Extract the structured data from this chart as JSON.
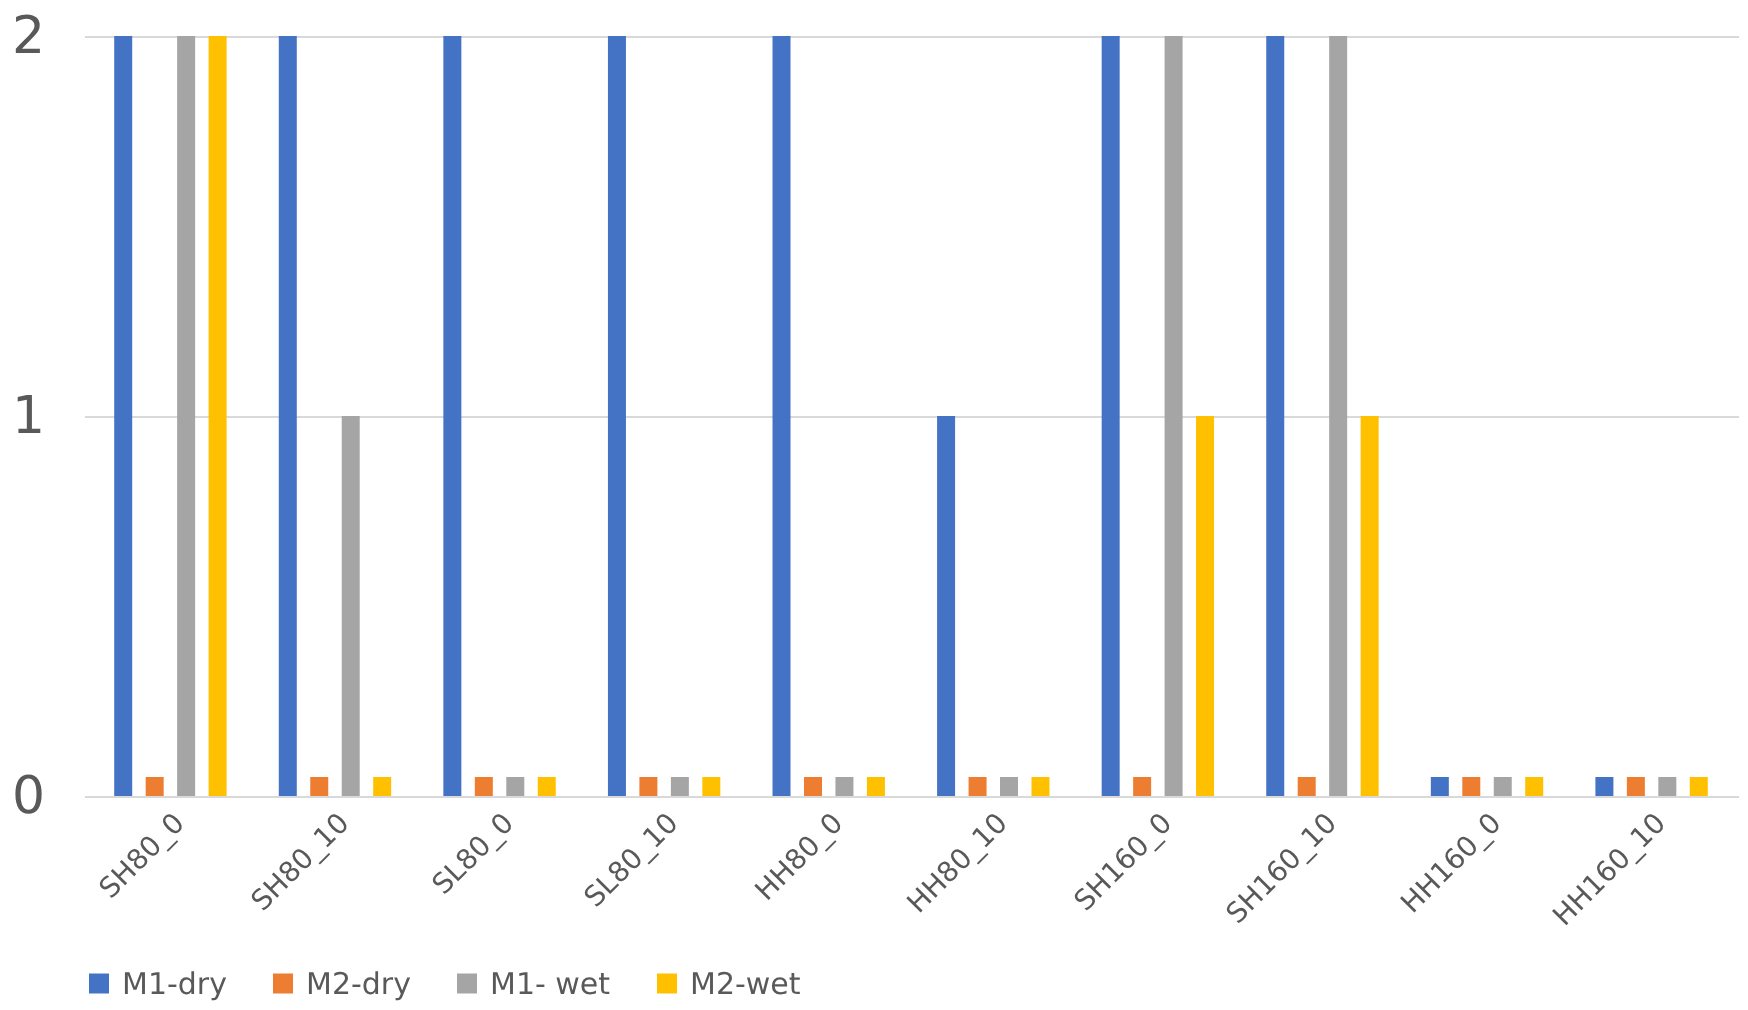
{
  "chart_data": {
    "type": "bar",
    "categories": [
      "SH80_0",
      "SH80_10",
      "SL80_0",
      "SL80_10",
      "HH80_0",
      "HH80_10",
      "SH160_0",
      "SH160_10",
      "HH160_0",
      "HH160_10"
    ],
    "series": [
      {
        "name": "M1-dry",
        "color": "#4472c4",
        "values": [
          2,
          2,
          2,
          2,
          2,
          1,
          2,
          2,
          0.05,
          0.05
        ]
      },
      {
        "name": "M2-dry",
        "color": "#ed7d31",
        "values": [
          0.05,
          0.05,
          0.05,
          0.05,
          0.05,
          0.05,
          0.05,
          0.05,
          0.05,
          0.05
        ]
      },
      {
        "name": "M1- wet",
        "color": "#a5a5a5",
        "values": [
          2,
          1,
          0.05,
          0.05,
          0.05,
          0.05,
          2,
          2,
          0.05,
          0.05
        ]
      },
      {
        "name": "M2-wet",
        "color": "#ffc000",
        "values": [
          2,
          0.05,
          0.05,
          0.05,
          0.05,
          0.05,
          1,
          1,
          0.05,
          0.05
        ]
      }
    ],
    "ylim": [
      0,
      2
    ],
    "yticks": [
      0,
      1,
      2
    ],
    "grid": "y",
    "legend": "bottom"
  }
}
